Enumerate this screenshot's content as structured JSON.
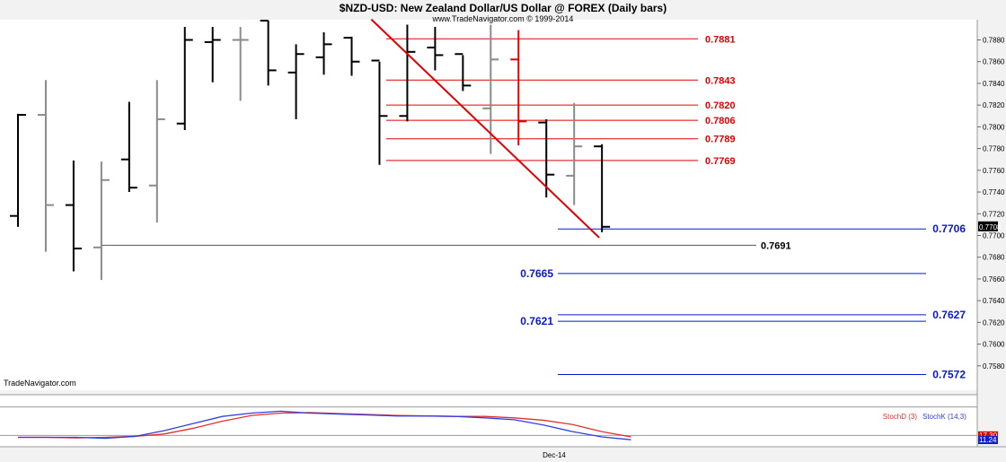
{
  "header": {
    "title": "$NZD-USD:  New Zealand Dollar/US Dollar @ FOREX  (Daily bars)",
    "copyright": "www.TradeNavigator.com © 1999-2014"
  },
  "watermark": "TradeNavigator.com",
  "x_axis_label": "Dec-14",
  "colors": {
    "bar_black": "#000000",
    "bar_gray": "#8a8a8a",
    "bar_red": "#e00000",
    "resistance": "#e00000",
    "support": "#0a18c8",
    "stoch_d": "#e03030",
    "stoch_k": "#3040e0"
  },
  "chart_data": [
    {
      "type": "ohlc",
      "title": "$NZD-USD:  New Zealand Dollar/US Dollar @ FOREX  (Daily bars)",
      "ylim": [
        0.7568,
        0.7898
      ],
      "y_ticks": [
        "0.7880",
        "0.7860",
        "0.7840",
        "0.7820",
        "0.7800",
        "0.7780",
        "0.7760",
        "0.7740",
        "0.7720",
        "0.7700",
        "0.7680",
        "0.7660",
        "0.7640",
        "0.7620",
        "0.7600",
        "0.7580"
      ],
      "last_price_label": "0.7708",
      "bars": [
        {
          "o": 0.7718,
          "h": 0.7812,
          "l": 0.7708,
          "c": 0.7811,
          "color": "black"
        },
        {
          "o": 0.7811,
          "h": 0.7843,
          "l": 0.7685,
          "c": 0.7728,
          "color": "gray"
        },
        {
          "o": 0.7728,
          "h": 0.7769,
          "l": 0.7667,
          "c": 0.7688,
          "color": "black"
        },
        {
          "o": 0.7689,
          "h": 0.7768,
          "l": 0.7659,
          "c": 0.7751,
          "color": "gray"
        },
        {
          "o": 0.777,
          "h": 0.7823,
          "l": 0.774,
          "c": 0.7744,
          "color": "black"
        },
        {
          "o": 0.7746,
          "h": 0.7843,
          "l": 0.7712,
          "c": 0.7807,
          "color": "gray"
        },
        {
          "o": 0.7803,
          "h": 0.7892,
          "l": 0.7797,
          "c": 0.788,
          "color": "black"
        },
        {
          "o": 0.7878,
          "h": 0.7892,
          "l": 0.7841,
          "c": 0.788,
          "color": "black"
        },
        {
          "o": 0.788,
          "h": 0.7892,
          "l": 0.7824,
          "c": 0.788,
          "color": "gray"
        },
        {
          "o": 0.79,
          "h": 0.79,
          "l": 0.7838,
          "c": 0.7852,
          "color": "black"
        },
        {
          "o": 0.785,
          "h": 0.7876,
          "l": 0.7807,
          "c": 0.7867,
          "color": "black"
        },
        {
          "o": 0.7864,
          "h": 0.7887,
          "l": 0.7848,
          "c": 0.7876,
          "color": "black"
        },
        {
          "o": 0.7882,
          "h": 0.7883,
          "l": 0.7847,
          "c": 0.786,
          "color": "black"
        },
        {
          "o": 0.7861,
          "h": 0.786,
          "l": 0.7765,
          "c": 0.781,
          "color": "black"
        },
        {
          "o": 0.781,
          "h": 0.7894,
          "l": 0.7805,
          "c": 0.7869,
          "color": "black"
        },
        {
          "o": 0.7873,
          "h": 0.7892,
          "l": 0.7852,
          "c": 0.7866,
          "color": "black"
        },
        {
          "o": 0.7867,
          "h": 0.7866,
          "l": 0.7833,
          "c": 0.7838,
          "color": "black"
        },
        {
          "o": 0.7817,
          "h": 0.7894,
          "l": 0.7775,
          "c": 0.7862,
          "color": "gray"
        },
        {
          "o": 0.7862,
          "h": 0.7889,
          "l": 0.7783,
          "c": 0.7805,
          "color": "red"
        },
        {
          "o": 0.7804,
          "h": 0.7807,
          "l": 0.7735,
          "c": 0.7756,
          "color": "black"
        },
        {
          "o": 0.7755,
          "h": 0.7822,
          "l": 0.7728,
          "c": 0.7782,
          "color": "gray"
        },
        {
          "o": 0.7782,
          "h": 0.7784,
          "l": 0.7703,
          "c": 0.7708,
          "color": "black"
        }
      ],
      "resistance_levels": [
        0.7881,
        0.7843,
        0.782,
        0.7806,
        0.7789,
        0.7769
      ],
      "resistance_labels": [
        "0.7881",
        "0.7843",
        "0.7820",
        "0.7806",
        "0.7789",
        "0.7769"
      ],
      "support_levels": [
        0.7706,
        0.7665,
        0.7627,
        0.7621,
        0.7572
      ],
      "support_labels": [
        "0.7706",
        "0.7665",
        "0.7627",
        "0.7621",
        "0.7572"
      ],
      "reference_level": 0.7691,
      "reference_label": "0.7691",
      "trendline": {
        "from_bar": 14,
        "from_price": 0.787,
        "to_bar": 21,
        "to_price": 0.7698
      }
    },
    {
      "type": "line",
      "title": "",
      "ylim": [
        0,
        100
      ],
      "legend": [
        "StochD (3)",
        "StochK (14,3)"
      ],
      "value_labels": [
        "17.30",
        "11.24"
      ],
      "series": [
        {
          "name": "StochD (3)",
          "values": [
            16,
            16,
            15,
            16,
            18,
            23,
            35,
            50,
            62,
            67,
            68,
            66,
            64,
            62,
            61,
            60,
            60,
            57,
            52,
            43,
            28,
            17
          ]
        },
        {
          "name": "StochK (14,3)",
          "values": [
            16,
            16,
            16,
            14,
            18,
            30,
            45,
            60,
            67,
            71,
            67,
            65,
            63,
            61,
            61,
            60,
            57,
            53,
            42,
            28,
            17,
            11
          ]
        }
      ]
    }
  ]
}
